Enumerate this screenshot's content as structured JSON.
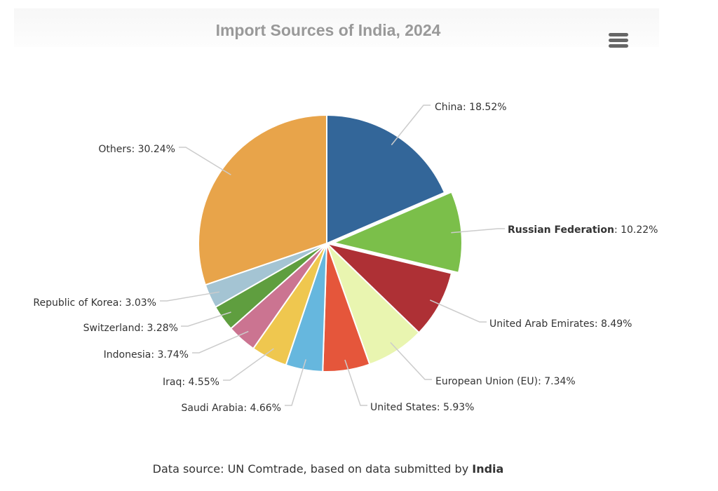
{
  "chart_data": {
    "type": "pie",
    "title": "Import Sources of India, 2024",
    "slices": [
      {
        "name": "China",
        "value": 18.52,
        "color": "#336699"
      },
      {
        "name": "Russian Federation",
        "value": 10.22,
        "color": "#7bbf4a",
        "selected": true
      },
      {
        "name": "United Arab Emirates",
        "value": 8.49,
        "color": "#ae3035"
      },
      {
        "name": "European Union (EU)",
        "value": 7.34,
        "color": "#e9f5b0"
      },
      {
        "name": "United States",
        "value": 5.93,
        "color": "#e5563b"
      },
      {
        "name": "Saudi Arabia",
        "value": 4.66,
        "color": "#66b7de"
      },
      {
        "name": "Iraq",
        "value": 4.55,
        "color": "#efc74f"
      },
      {
        "name": "Indonesia",
        "value": 3.74,
        "color": "#cb7491"
      },
      {
        "name": "Switzerland",
        "value": 3.28,
        "color": "#5f9e3f"
      },
      {
        "name": "Republic of Korea",
        "value": 3.03,
        "color": "#a4c4d3"
      },
      {
        "name": "Others",
        "value": 30.24,
        "color": "#e8a44a"
      }
    ],
    "value_suffix": "%"
  },
  "source": {
    "prefix": "Data source: UN Comtrade, based on data submitted by ",
    "country": "India"
  }
}
